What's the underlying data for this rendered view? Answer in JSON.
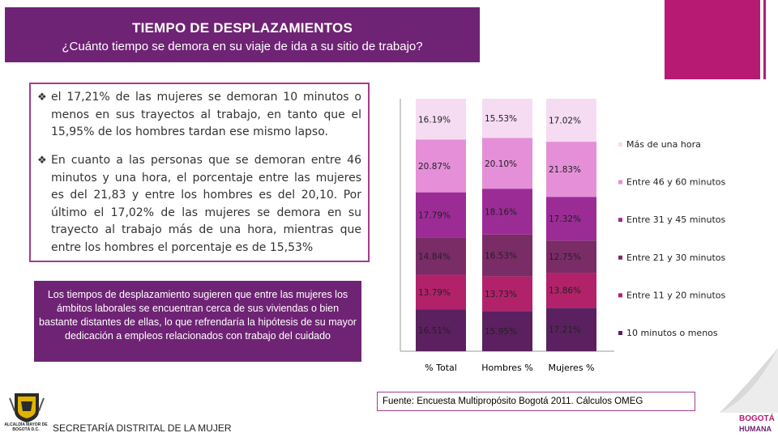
{
  "header": {
    "title": "TIEMPO DE DESPLAZAMIENTOS",
    "subtitle": "¿Cuánto tiempo se demora en su viaje de ida a su sitio de trabajo?"
  },
  "bullets": [
    {
      "text": "el 17,21% de las mujeres se demoran 10 minutos o menos en sus trayectos al trabajo, en tanto que el 15,95% de los hombres tardan ese mismo lapso."
    },
    {
      "text": "En cuanto a las personas que se demoran entre 46 minutos y una hora, el porcentaje entre las mujeres es del 21,83 y entre los hombres es del 20,10. Por último el 17,02% de las mujeres se demora en su trayecto al trabajo más de una hora, mientras que entre los hombres el porcentaje es de 15,53%"
    }
  ],
  "note": {
    "text": "Los tiempos de desplazamiento sugieren que entre las mujeres los ámbitos laborales se encuentran cerca de sus viviendas o bien bastante distantes de ellas, lo que refrendaría la hipótesis de su mayor dedicación a empleos relacionados con trabajo del cuidado"
  },
  "chart_data": {
    "type": "bar",
    "stacked": true,
    "normalized": true,
    "categories": [
      "% Total",
      "Hombres %",
      "Mujeres %"
    ],
    "series": [
      {
        "name": "10 minutos o menos",
        "color": "#5b2060",
        "values": [
          16.51,
          15.95,
          17.21
        ],
        "labels": [
          "16.51%",
          "15.95%",
          "17.21%"
        ]
      },
      {
        "name": "Entre 11 y 20 minutos",
        "color": "#b1226a",
        "values": [
          13.79,
          13.73,
          13.86
        ],
        "labels": [
          "13.79%",
          "13.73%",
          "13.86%"
        ]
      },
      {
        "name": "Entre 21 y 30 minutos",
        "color": "#7a2c67",
        "values": [
          14.84,
          16.53,
          12.75
        ],
        "labels": [
          "14.84%",
          "16.53%",
          "12.75%"
        ]
      },
      {
        "name": "Entre 31 y 45 minutos",
        "color": "#9b2c96",
        "values": [
          17.79,
          18.16,
          17.32
        ],
        "labels": [
          "17.79%",
          "18.16%",
          "17.32%"
        ]
      },
      {
        "name": "Entre 46 y 60 minutos",
        "color": "#e58fd9",
        "values": [
          20.87,
          20.1,
          21.83
        ],
        "labels": [
          "20.87%",
          "20.10%",
          "21.83%"
        ]
      },
      {
        "name": "Más de una hora",
        "color": "#f6dcf3",
        "values": [
          16.19,
          15.53,
          17.02
        ],
        "labels": [
          "16.19%",
          "15.53%",
          "17.02%"
        ]
      }
    ],
    "legend_position": "right",
    "grid": false
  },
  "source": {
    "text": "Fuente: Encuesta Multipropósito Bogotá 2011. Cálculos OMEG"
  },
  "footer": {
    "org": "SECRETARÍA DISTRITAL DE LA MUJER",
    "crest_caption": "ALCALDÍA MAYOR DE BOGOTÁ D.C."
  },
  "brand": {
    "logo_text": "BOGOTÁ HUMANA",
    "primary": "#6f2374",
    "accent": "#b71a73"
  }
}
